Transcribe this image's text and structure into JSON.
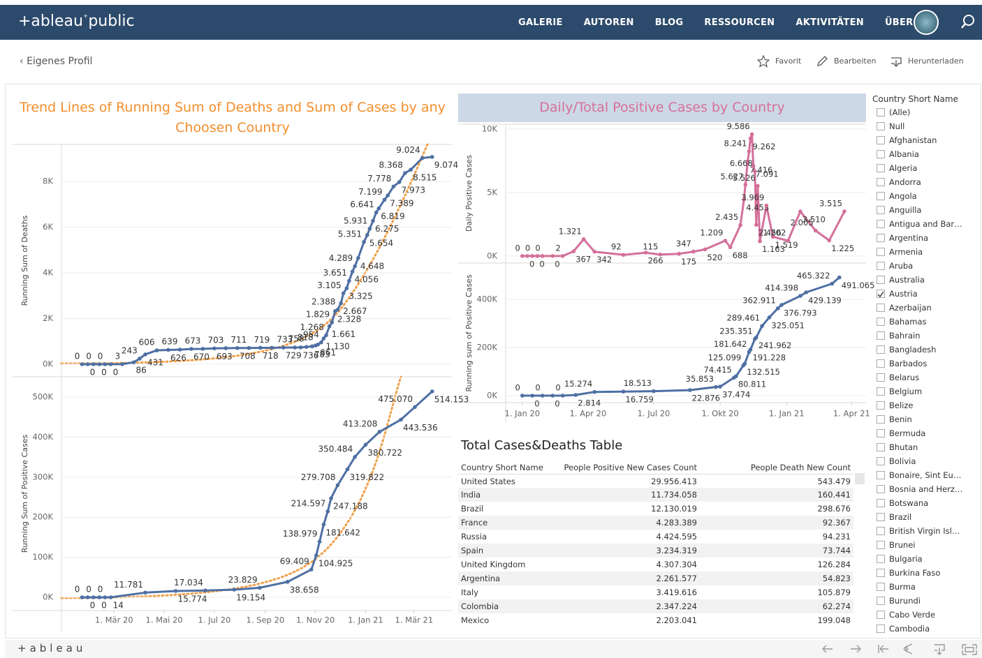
{
  "header": {
    "logo_left": "+ableau",
    "logo_right": "public",
    "nav": [
      "GALERIE",
      "AUTOREN",
      "BLOG",
      "RESSOURCEN",
      "AKTIVITÄTEN",
      "ÜBER"
    ]
  },
  "toolbar": {
    "back": "Eigenes Profil",
    "actions": [
      "Favorit",
      "Bearbeiten",
      "Herunterladen"
    ]
  },
  "chart_data": [
    {
      "type": "line",
      "title": "Trend Lines of Running Sum of Deaths and Sum of Cases by any Choosen Country",
      "y_label": "Running Sum of Deaths",
      "color": "#4e6fa3",
      "markers": true,
      "grid": true,
      "xlim": [
        "2019-12-28",
        "2021-04-16"
      ],
      "ylim": [
        -550,
        9620
      ],
      "yticks": [
        {
          "value": 0,
          "label": "0K"
        },
        {
          "value": 2000,
          "label": "2K"
        },
        {
          "value": 4000,
          "label": "4K"
        },
        {
          "value": 6000,
          "label": "6K"
        },
        {
          "value": 8000,
          "label": "8K"
        }
      ],
      "x": [
        "2020-01-22",
        "2020-01-29",
        "2020-02-05",
        "2020-02-12",
        "2020-02-19",
        "2020-02-26",
        "2020-03-11",
        "2020-03-25",
        "2020-04-01",
        "2020-04-08",
        "2020-04-22",
        "2020-05-06",
        "2020-05-20",
        "2020-06-03",
        "2020-06-17",
        "2020-07-01",
        "2020-07-15",
        "2020-07-29",
        "2020-08-12",
        "2020-08-26",
        "2020-09-09",
        "2020-09-23",
        "2020-10-07",
        "2020-10-14",
        "2020-10-21",
        "2020-10-28",
        "2020-11-01",
        "2020-11-04",
        "2020-11-08",
        "2020-11-11",
        "2020-11-14",
        "2020-11-18",
        "2020-11-21",
        "2020-11-25",
        "2020-11-28",
        "2020-12-02",
        "2020-12-05",
        "2020-12-09",
        "2020-12-12",
        "2020-12-16",
        "2020-12-19",
        "2020-12-23",
        "2020-12-30",
        "2021-01-03",
        "2021-01-06",
        "2021-01-10",
        "2021-01-14",
        "2021-01-17",
        "2021-01-24",
        "2021-01-28",
        "2021-02-04",
        "2021-02-11",
        "2021-02-18",
        "2021-02-25",
        "2021-03-11",
        "2021-03-23"
      ],
      "values": [
        0,
        0,
        0,
        0,
        0,
        0,
        3,
        86,
        243,
        431,
        606,
        626,
        639,
        670,
        673,
        693,
        703,
        708,
        711,
        718,
        719,
        729,
        733,
        736,
        758,
        783,
        818,
        861,
        954,
        1130,
        1268,
        1661,
        1829,
        2328,
        2388,
        2667,
        3105,
        3325,
        3651,
        4056,
        4289,
        4648,
        5351,
        5654,
        5931,
        6275,
        6641,
        6819,
        7199,
        7389,
        7778,
        7973,
        8368,
        8515,
        9024,
        9074
      ],
      "value_labels": [
        "0",
        "0",
        "0",
        "0",
        "0",
        "0",
        "3",
        "86",
        "243",
        "431",
        "606",
        "626",
        "639",
        "670",
        "673",
        "693",
        "703",
        "708",
        "711",
        "718",
        "719",
        "729",
        "733",
        "736",
        "758",
        "783",
        "818",
        "861",
        "954",
        "1.130",
        "1.268",
        "1.661",
        "1.829",
        "2.328",
        "2.388",
        "2.667",
        "3.105",
        "3.325",
        "3.651",
        "4.056",
        "4.289",
        "4.648",
        "5.351",
        "5.654",
        "5.931",
        "6.275",
        "6.641",
        "6.819",
        "7.199",
        "7.389",
        "7.778",
        "7.973",
        "8.368",
        "8.515",
        "9.024",
        "9.074"
      ]
    },
    {
      "type": "line",
      "y_label": "Running Sum of Positive Cases",
      "color": "#4e6fa3",
      "markers": true,
      "grid": true,
      "xlim": [
        "2019-12-28",
        "2021-04-16"
      ],
      "ylim": [
        -33000,
        550500
      ],
      "xticks": [
        {
          "value": "2020-03-01",
          "label": "1. Mär 20"
        },
        {
          "value": "2020-05-01",
          "label": "1. Mai 20"
        },
        {
          "value": "2020-07-01",
          "label": "1. Jul 20"
        },
        {
          "value": "2020-09-01",
          "label": "1. Sep 20"
        },
        {
          "value": "2020-11-01",
          "label": "1. Nov 20"
        },
        {
          "value": "2021-01-01",
          "label": "1. Jan 21"
        },
        {
          "value": "2021-03-01",
          "label": "1. Mär 21"
        }
      ],
      "yticks": [
        {
          "value": 0,
          "label": "0K"
        },
        {
          "value": 100000,
          "label": "100K"
        },
        {
          "value": 200000,
          "label": "200K"
        },
        {
          "value": 300000,
          "label": "300K"
        },
        {
          "value": 400000,
          "label": "400K"
        },
        {
          "value": 500000,
          "label": "500K"
        }
      ],
      "x": [
        "2020-01-22",
        "2020-01-29",
        "2020-02-05",
        "2020-02-12",
        "2020-02-19",
        "2020-02-26",
        "2020-04-08",
        "2020-05-15",
        "2020-06-20",
        "2020-07-25",
        "2020-08-25",
        "2020-09-28",
        "2020-10-27",
        "2020-11-02",
        "2020-11-06",
        "2020-11-11",
        "2020-11-16",
        "2020-11-20",
        "2020-11-28",
        "2020-12-10",
        "2020-12-19",
        "2021-01-01",
        "2021-01-18",
        "2021-02-13",
        "2021-03-02",
        "2021-03-23"
      ],
      "values": [
        0,
        0,
        0,
        0,
        0,
        14,
        11781,
        15774,
        17034,
        19154,
        23829,
        38658,
        69409,
        104925,
        138979,
        181642,
        214597,
        247188,
        279708,
        319822,
        350484,
        380722,
        413208,
        443536,
        475070,
        514153
      ],
      "value_labels": [
        "0",
        "0",
        "0",
        "0",
        "0",
        "14",
        "11.781",
        "15.774",
        "17.034",
        "19.154",
        "23.829",
        "38.658",
        "69.409",
        "104.925",
        "138.979",
        "181.642",
        "214.597",
        "247.188",
        "279.708",
        "319.822",
        "350.484",
        "380.722",
        "413.208",
        "443.536",
        "475.070",
        "514.153"
      ]
    },
    {
      "type": "line",
      "title": "Daily/Total Positive Cases by Country",
      "y_label": "Daily Positive Cases",
      "color": "#d4709a",
      "markers": true,
      "grid": true,
      "xlim": [
        "2019-12-09",
        "2021-04-21"
      ],
      "ylim": [
        -500,
        10380
      ],
      "yticks": [
        {
          "value": 0,
          "label": "0K"
        },
        {
          "value": 5000,
          "label": "5K"
        },
        {
          "value": 10000,
          "label": "10K"
        }
      ],
      "x": [
        "2020-01-01",
        "2020-01-08",
        "2020-01-15",
        "2020-01-22",
        "2020-01-29",
        "2020-02-12",
        "2020-02-26",
        "2020-03-12",
        "2020-03-26",
        "2020-04-10",
        "2020-05-20",
        "2020-06-20",
        "2020-07-10",
        "2020-08-05",
        "2020-08-25",
        "2020-09-10",
        "2020-10-08",
        "2020-10-15",
        "2020-10-29",
        "2020-11-03",
        "2020-11-05",
        "2020-11-08",
        "2020-11-10",
        "2020-11-12",
        "2020-11-14",
        "2020-11-16",
        "2020-11-18",
        "2020-11-20",
        "2020-11-22",
        "2020-11-25",
        "2020-12-04",
        "2020-12-13",
        "2021-01-03",
        "2021-01-20",
        "2021-02-10",
        "2021-03-01",
        "2021-03-22"
      ],
      "values": [
        0,
        0,
        0,
        0,
        0,
        0,
        2,
        367,
        1321,
        342,
        92,
        266,
        115,
        175,
        347,
        520,
        1209,
        688,
        2435,
        4453,
        5627,
        7416,
        8241,
        9262,
        9586,
        7091,
        6668,
        2456,
        5526,
        1163,
        3969,
        1519,
        1202,
        3510,
        2005,
        1225,
        3515
      ],
      "value_labels": [
        "0",
        "0",
        "0",
        "0",
        "0",
        "0",
        "2",
        "367",
        "1.321",
        "342",
        "92",
        "266",
        "115",
        "175",
        "347",
        "520",
        "1.209",
        "688",
        "2.435",
        "4.453",
        "5.627",
        "7.416",
        "8.241",
        "9.262",
        "9.586",
        "7.091",
        "6.668",
        "2.456",
        "5.526",
        "1.163",
        "3.969",
        "1.519",
        "1.202",
        "3.510",
        "2.005",
        "1.225",
        "3.515"
      ]
    },
    {
      "type": "line",
      "y_label": "Running sum of Positive Cases",
      "color": "#4e6fa3",
      "markers": true,
      "grid": true,
      "xlim": [
        "2019-12-09",
        "2021-04-21"
      ],
      "ylim": [
        -29000,
        548000
      ],
      "xticks": [
        {
          "value": "2020-01-01",
          "label": "1. Jan 20"
        },
        {
          "value": "2020-04-01",
          "label": "1. Apr 20"
        },
        {
          "value": "2020-07-01",
          "label": "1. Jul 20"
        },
        {
          "value": "2020-10-01",
          "label": "1. Okt 20"
        },
        {
          "value": "2021-01-01",
          "label": "1. Jan 21"
        },
        {
          "value": "2021-04-01",
          "label": "1. Apr 21"
        }
      ],
      "yticks": [
        {
          "value": 0,
          "label": "0K"
        },
        {
          "value": 200000,
          "label": "200K"
        },
        {
          "value": 400000,
          "label": "400K"
        }
      ],
      "x": [
        "2020-01-01",
        "2020-01-15",
        "2020-01-29",
        "2020-02-12",
        "2020-02-26",
        "2020-03-15",
        "2020-04-10",
        "2020-05-20",
        "2020-07-01",
        "2020-08-20",
        "2020-09-25",
        "2020-10-01",
        "2020-10-20",
        "2020-10-23",
        "2020-11-02",
        "2020-11-04",
        "2020-11-10",
        "2020-11-12",
        "2020-11-18",
        "2020-11-20",
        "2020-11-28",
        "2020-12-08",
        "2020-12-20",
        "2020-12-25",
        "2021-01-20",
        "2021-01-28",
        "2021-03-05",
        "2021-03-15"
      ],
      "values": [
        0,
        0,
        0,
        0,
        0,
        2814,
        15274,
        16759,
        18513,
        22876,
        35853,
        37474,
        74415,
        80811,
        125099,
        132515,
        181642,
        191228,
        235351,
        241962,
        289461,
        325051,
        362911,
        376793,
        414398,
        429139,
        465322,
        491065
      ],
      "value_labels": [
        "0",
        "0",
        "0",
        "0",
        "0",
        "2.814",
        "15.274",
        "16.759",
        "18.513",
        "22.876",
        "35.853",
        "37.474",
        "74.415",
        "80.811",
        "125.099",
        "132.515",
        "181.642",
        "191.228",
        "235.351",
        "241.962",
        "289.461",
        "325.051",
        "362.911",
        "376.793",
        "414.398",
        "429.139",
        "465.322",
        "491.065"
      ]
    }
  ],
  "table": {
    "title": "Total Cases&Deaths Table",
    "columns": [
      "Country Short Name",
      "People Positive New Cases Count",
      "People Death New Count"
    ],
    "rows": [
      [
        "United States",
        "29.956.413",
        "543.479"
      ],
      [
        "India",
        "11.734.058",
        "160.441"
      ],
      [
        "Brazil",
        "12.130.019",
        "298.676"
      ],
      [
        "France",
        "4.283.389",
        "92.367"
      ],
      [
        "Russia",
        "4.424.595",
        "94.231"
      ],
      [
        "Spain",
        "3.234.319",
        "73.744"
      ],
      [
        "United Kingdom",
        "4.307.304",
        "126.284"
      ],
      [
        "Argentina",
        "2.261.577",
        "54.823"
      ],
      [
        "Italy",
        "3.419.616",
        "105.879"
      ],
      [
        "Colombia",
        "2.347.224",
        "62.274"
      ],
      [
        "Mexico",
        "2.203.041",
        "199.048"
      ]
    ]
  },
  "filter": {
    "title": "Country Short Name",
    "items": [
      {
        "label": "(Alle)",
        "checked": false
      },
      {
        "label": "Null",
        "checked": false
      },
      {
        "label": "Afghanistan",
        "checked": false
      },
      {
        "label": "Albania",
        "checked": false
      },
      {
        "label": "Algeria",
        "checked": false
      },
      {
        "label": "Andorra",
        "checked": false
      },
      {
        "label": "Angola",
        "checked": false
      },
      {
        "label": "Anguilla",
        "checked": false
      },
      {
        "label": "Antigua and Bar…",
        "checked": false
      },
      {
        "label": "Argentina",
        "checked": false
      },
      {
        "label": "Armenia",
        "checked": false
      },
      {
        "label": "Aruba",
        "checked": false
      },
      {
        "label": "Australia",
        "checked": false
      },
      {
        "label": "Austria",
        "checked": true
      },
      {
        "label": "Azerbaijan",
        "checked": false
      },
      {
        "label": "Bahamas",
        "checked": false
      },
      {
        "label": "Bahrain",
        "checked": false
      },
      {
        "label": "Bangladesh",
        "checked": false
      },
      {
        "label": "Barbados",
        "checked": false
      },
      {
        "label": "Belarus",
        "checked": false
      },
      {
        "label": "Belgium",
        "checked": false
      },
      {
        "label": "Belize",
        "checked": false
      },
      {
        "label": "Benin",
        "checked": false
      },
      {
        "label": "Bermuda",
        "checked": false
      },
      {
        "label": "Bhutan",
        "checked": false
      },
      {
        "label": "Bolivia",
        "checked": false
      },
      {
        "label": "Bonaire, Sint Eu…",
        "checked": false
      },
      {
        "label": "Bosnia and Herz…",
        "checked": false
      },
      {
        "label": "Botswana",
        "checked": false
      },
      {
        "label": "Brazil",
        "checked": false
      },
      {
        "label": "British Virgin Isl…",
        "checked": false
      },
      {
        "label": "Brunei",
        "checked": false
      },
      {
        "label": "Bulgaria",
        "checked": false
      },
      {
        "label": "Burkina Faso",
        "checked": false
      },
      {
        "label": "Burma",
        "checked": false
      },
      {
        "label": "Burundi",
        "checked": false
      },
      {
        "label": "Cabo Verde",
        "checked": false
      },
      {
        "label": "Cambodia",
        "checked": false
      }
    ]
  },
  "footer": {
    "logo": "+ableau"
  }
}
